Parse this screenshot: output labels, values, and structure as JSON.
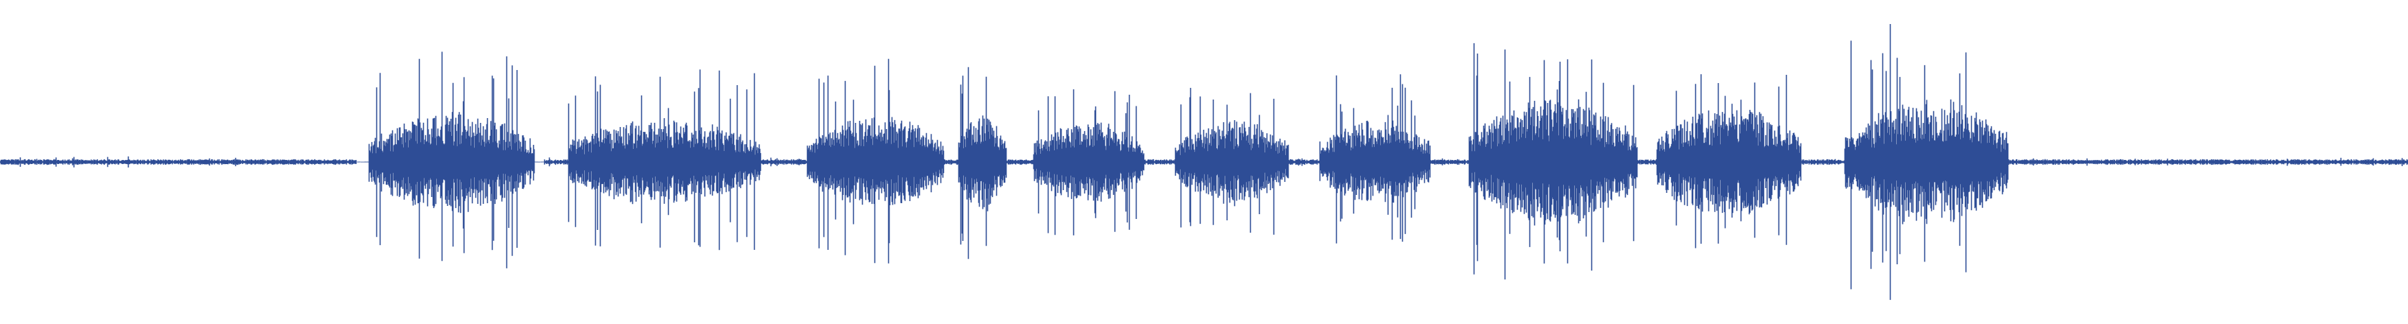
{
  "waveform": {
    "color": "#2e4d96",
    "background": "#ffffff",
    "segments": [
      {
        "start": 0.0,
        "end": 0.148,
        "level": "quiet"
      },
      {
        "start": 0.148,
        "end": 0.153,
        "level": "silent"
      },
      {
        "start": 0.153,
        "end": 0.222,
        "level": "speech",
        "amplitude": 0.3,
        "peak": 0.7
      },
      {
        "start": 0.222,
        "end": 0.226,
        "level": "silent"
      },
      {
        "start": 0.226,
        "end": 0.236,
        "level": "quiet"
      },
      {
        "start": 0.236,
        "end": 0.316,
        "level": "speech",
        "amplitude": 0.26,
        "peak": 0.6
      },
      {
        "start": 0.316,
        "end": 0.335,
        "level": "quiet"
      },
      {
        "start": 0.335,
        "end": 0.392,
        "level": "speech",
        "amplitude": 0.28,
        "peak": 0.65
      },
      {
        "start": 0.392,
        "end": 0.398,
        "level": "quiet"
      },
      {
        "start": 0.398,
        "end": 0.418,
        "level": "speech",
        "amplitude": 0.3,
        "peak": 0.65
      },
      {
        "start": 0.418,
        "end": 0.429,
        "level": "quiet"
      },
      {
        "start": 0.429,
        "end": 0.475,
        "level": "speech",
        "amplitude": 0.25,
        "peak": 0.5
      },
      {
        "start": 0.475,
        "end": 0.488,
        "level": "quiet"
      },
      {
        "start": 0.488,
        "end": 0.535,
        "level": "speech",
        "amplitude": 0.25,
        "peak": 0.5
      },
      {
        "start": 0.535,
        "end": 0.548,
        "level": "quiet"
      },
      {
        "start": 0.548,
        "end": 0.594,
        "level": "speech",
        "amplitude": 0.26,
        "peak": 0.55
      },
      {
        "start": 0.594,
        "end": 0.61,
        "level": "quiet"
      },
      {
        "start": 0.61,
        "end": 0.68,
        "level": "speech",
        "amplitude": 0.38,
        "peak": 0.75
      },
      {
        "start": 0.68,
        "end": 0.688,
        "level": "quiet"
      },
      {
        "start": 0.688,
        "end": 0.748,
        "level": "speech",
        "amplitude": 0.34,
        "peak": 0.7
      },
      {
        "start": 0.748,
        "end": 0.766,
        "level": "quiet"
      },
      {
        "start": 0.766,
        "end": 0.834,
        "level": "speech",
        "amplitude": 0.38,
        "peak": 0.95
      },
      {
        "start": 0.834,
        "end": 0.84,
        "level": "quiet"
      },
      {
        "start": 0.84,
        "end": 1.0,
        "level": "quiet"
      }
    ]
  }
}
